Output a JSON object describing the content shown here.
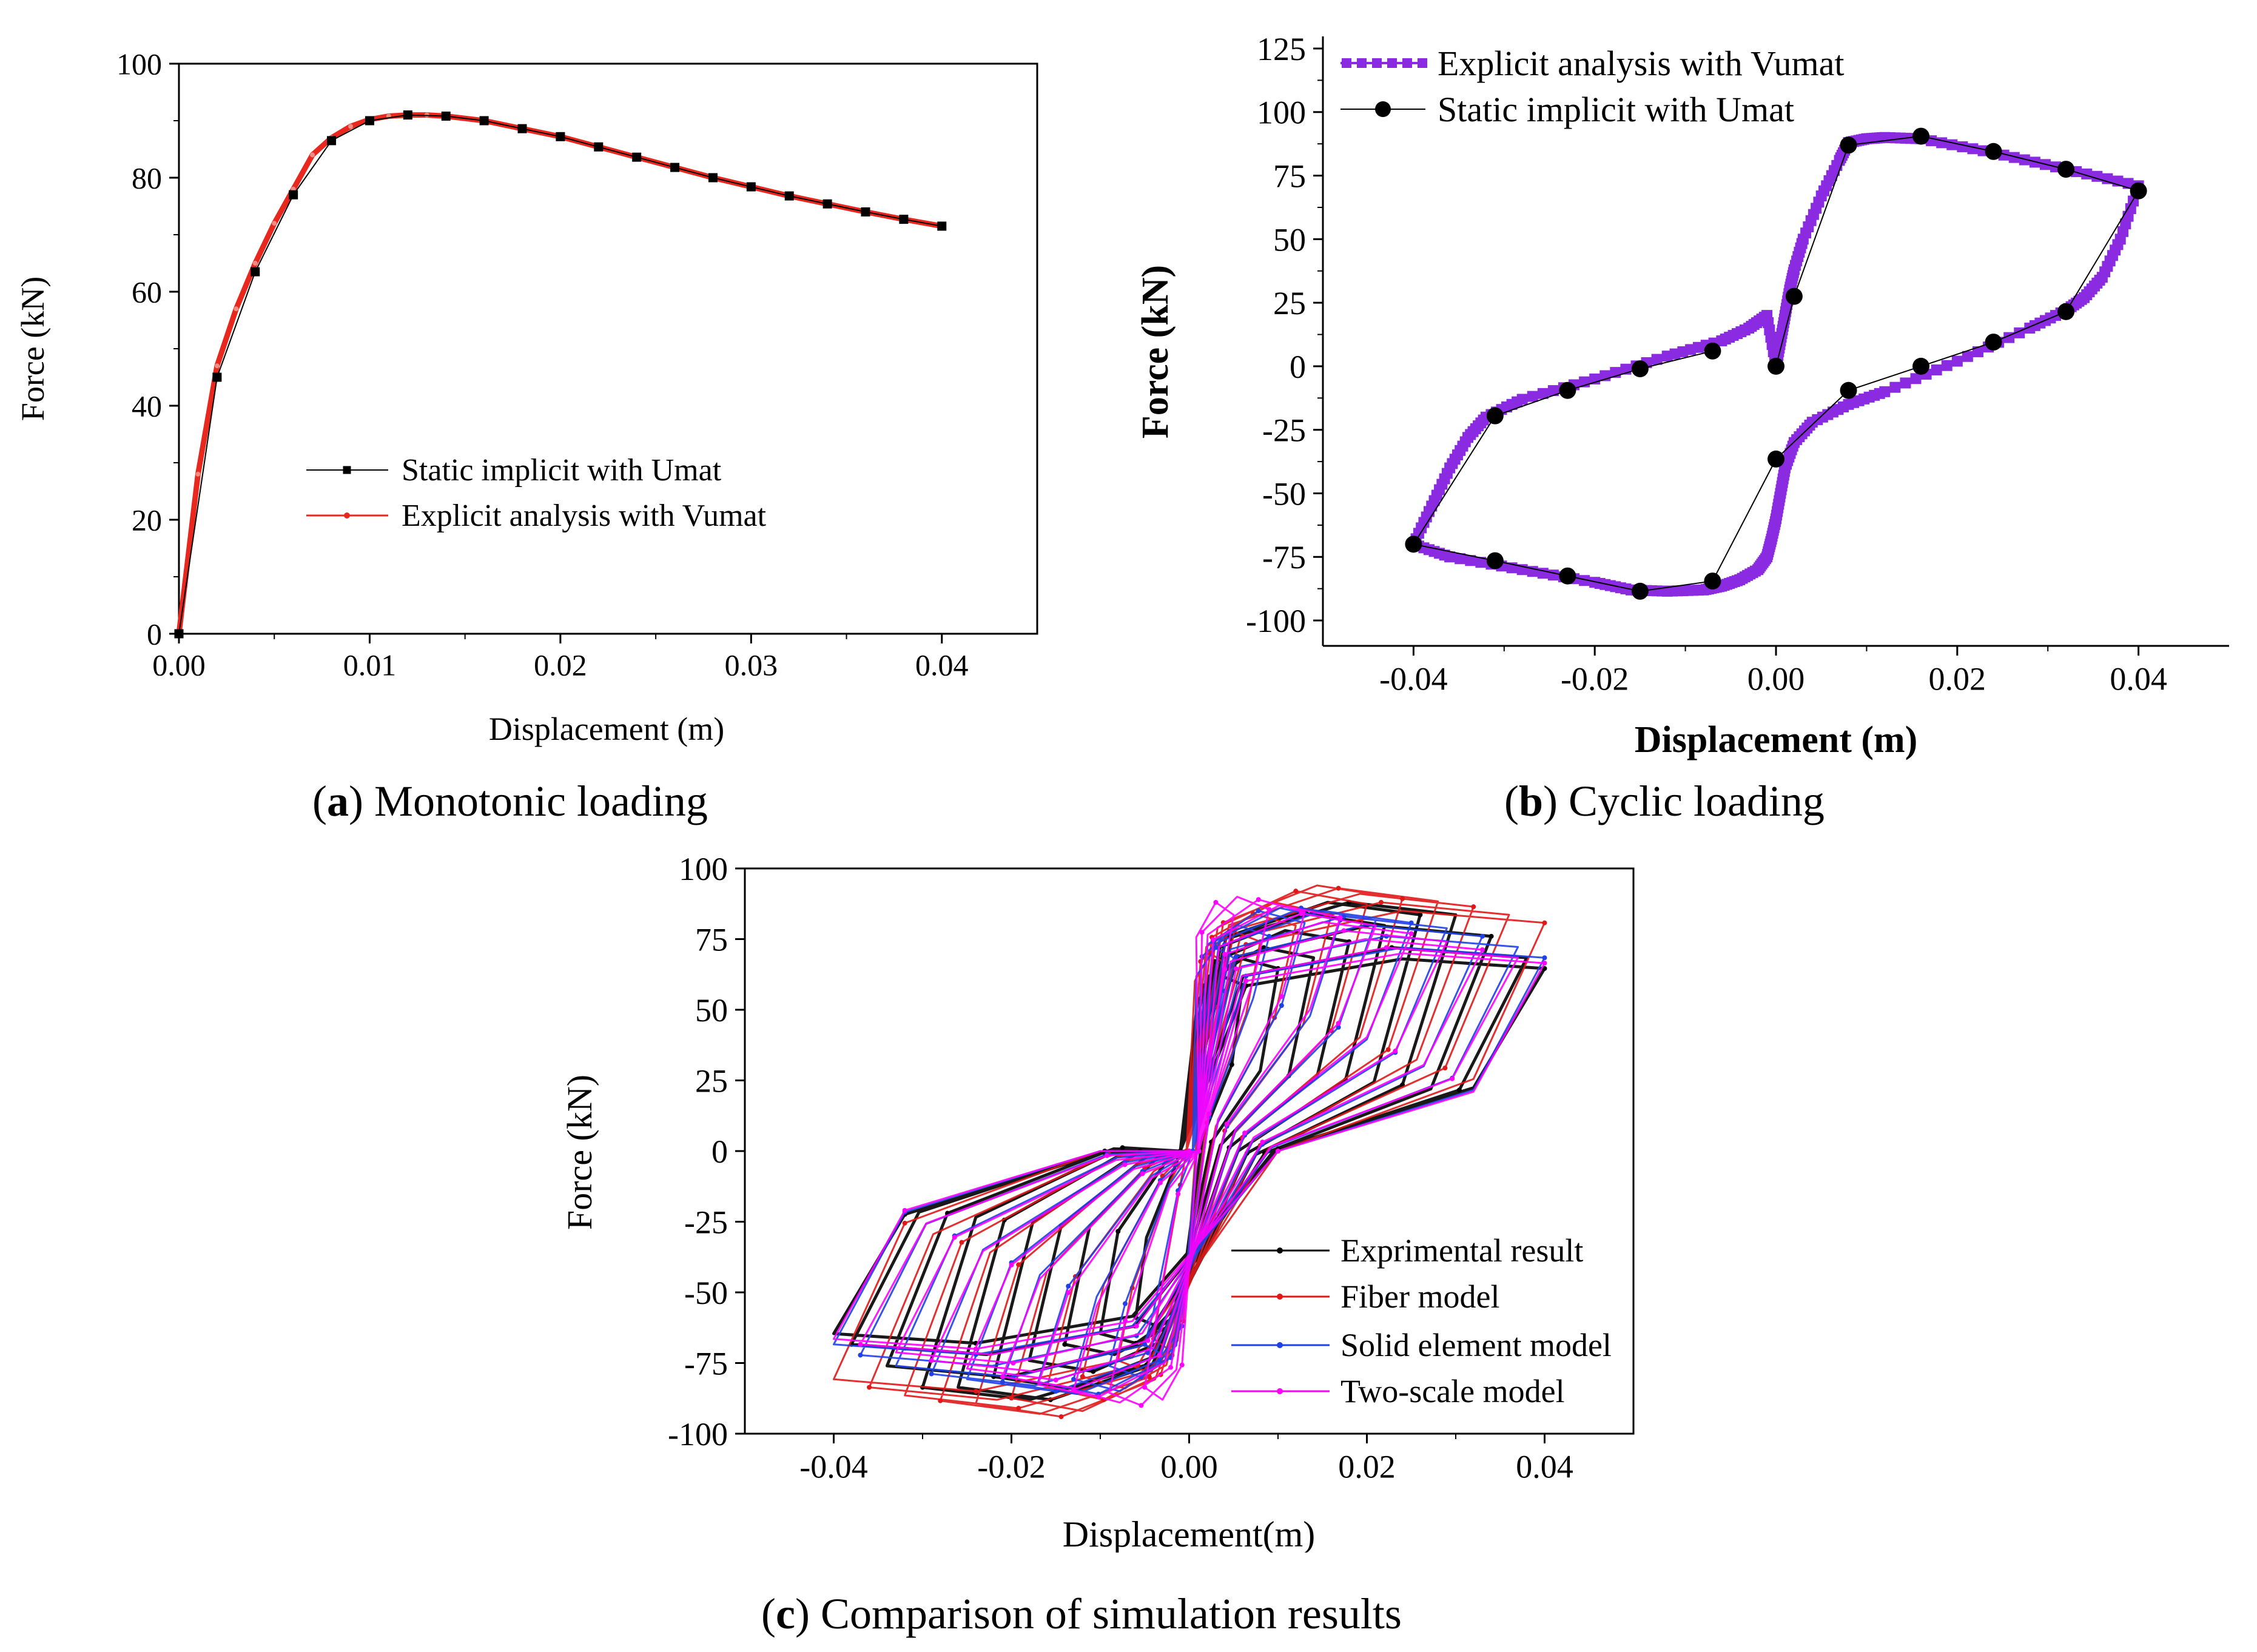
{
  "chart_data": [
    {
      "id": "a",
      "type": "line",
      "caption_letter": "a",
      "caption_text": "Monotonic loading",
      "xlabel": "Displacement (m)",
      "ylabel": "Force (kN)",
      "xlim": [
        0,
        0.045
      ],
      "ylim": [
        0,
        100
      ],
      "xticks": [
        "0.00",
        "0.01",
        "0.02",
        "0.03",
        "0.04"
      ],
      "xtick_values": [
        0,
        0.01,
        0.02,
        0.03,
        0.04
      ],
      "yticks": [
        "0",
        "20",
        "40",
        "60",
        "80",
        "100"
      ],
      "ytick_values": [
        0,
        20,
        40,
        60,
        80,
        100
      ],
      "legend_position": "center",
      "series": [
        {
          "name": "Static implicit with Umat",
          "color": "#000000",
          "marker": "square",
          "x": [
            0,
            0.002,
            0.004,
            0.006,
            0.008,
            0.01,
            0.012,
            0.014,
            0.016,
            0.018,
            0.02,
            0.022,
            0.024,
            0.026,
            0.028,
            0.03,
            0.032,
            0.034,
            0.036,
            0.038,
            0.04
          ],
          "values": [
            0,
            45,
            63.5,
            77,
            86.5,
            90,
            91,
            90.8,
            90,
            88.6,
            87.2,
            85.4,
            83.6,
            81.8,
            80,
            78.4,
            76.8,
            75.4,
            74,
            72.7,
            71.5
          ]
        },
        {
          "name": "Explicit analysis with Vumat",
          "color": "#e8281e",
          "marker": "dot",
          "x": [
            0,
            0.001,
            0.002,
            0.003,
            0.004,
            0.005,
            0.006,
            0.007,
            0.008,
            0.009,
            0.01,
            0.011,
            0.012,
            0.013,
            0.014,
            0.016,
            0.018,
            0.02,
            0.022,
            0.024,
            0.026,
            0.028,
            0.03,
            0.032,
            0.034,
            0.036,
            0.038,
            0.04
          ],
          "values": [
            0,
            28,
            47,
            57,
            65,
            72,
            78,
            84,
            87,
            89,
            90.2,
            90.8,
            91,
            91,
            90.8,
            90,
            88.6,
            87.2,
            85.4,
            83.6,
            81.8,
            80,
            78.4,
            76.8,
            75.4,
            74,
            72.7,
            71.5
          ]
        }
      ]
    },
    {
      "id": "b",
      "type": "line",
      "caption_letter": "b",
      "caption_text": "Cyclic loading",
      "xlabel": "Displacement (m)",
      "ylabel": "Force (kN)",
      "xlim": [
        -0.05,
        0.05
      ],
      "ylim": [
        -110,
        125
      ],
      "xticks": [
        "-0.04",
        "-0.02",
        "0.00",
        "0.02",
        "0.04"
      ],
      "xtick_values": [
        -0.04,
        -0.02,
        0,
        0.02,
        0.04
      ],
      "yticks": [
        "125",
        "100",
        "75",
        "50",
        "25",
        "0",
        "-25",
        "-50",
        "-75",
        "-100"
      ],
      "ytick_values": [
        125,
        100,
        75,
        50,
        25,
        0,
        -25,
        -50,
        -75,
        -100
      ],
      "legend_position": "top-left",
      "series": [
        {
          "name": "Explicit analysis with Vumat",
          "color": "#8a2be2",
          "marker": "square",
          "x": [
            0,
            0.0005,
            0.001,
            0.0015,
            0.002,
            0.003,
            0.005,
            0.007,
            0.008,
            0.01,
            0.012,
            0.016,
            0.024,
            0.032,
            0.04,
            0.038,
            0.036,
            0.034,
            0.032,
            0.028,
            0.02,
            0.012,
            0.008,
            0.004,
            0.002,
            0.001,
            0.0005,
            0,
            -0.0005,
            -0.001,
            -0.002,
            -0.004,
            -0.006,
            -0.008,
            -0.012,
            -0.016,
            -0.02,
            -0.028,
            -0.036,
            -0.04,
            -0.038,
            -0.036,
            -0.034,
            -0.032,
            -0.028,
            -0.02,
            -0.012,
            -0.006,
            -0.003,
            -0.001,
            0
          ],
          "values": [
            0,
            10,
            20,
            30,
            38,
            50,
            67,
            81,
            88,
            89.5,
            90,
            89.5,
            84,
            77.5,
            71,
            50,
            35,
            27,
            22,
            15,
            2,
            -10,
            -15,
            -22,
            -30,
            -40,
            -50,
            -60,
            -68,
            -75,
            -80,
            -84,
            -86.5,
            -88,
            -88.5,
            -88,
            -85,
            -80,
            -75,
            -70,
            -55,
            -40,
            -28,
            -20,
            -13,
            -5,
            4,
            10,
            15,
            20,
            0
          ]
        },
        {
          "name": "Static implicit with Umat",
          "color": "#000000",
          "marker": "circle",
          "x": [
            0,
            0.002,
            0.008,
            0.016,
            0.024,
            0.032,
            0.04,
            0.032,
            0.024,
            0.016,
            0.008,
            0,
            -0.007,
            -0.015,
            -0.023,
            -0.031,
            -0.04,
            -0.031,
            -0.023,
            -0.015,
            -0.007
          ],
          "values": [
            0,
            27.5,
            87,
            90.5,
            84.5,
            77.5,
            69,
            21.5,
            9.5,
            0,
            -9.5,
            -36.5,
            -84.5,
            -88.5,
            -82.5,
            -76.5,
            -70,
            -19.5,
            -9.5,
            -1,
            6
          ]
        }
      ]
    },
    {
      "id": "c",
      "type": "line",
      "caption_letter": "c",
      "caption_text": "Comparison of simulation results",
      "xlabel": "Displacement(m)",
      "ylabel": "Force (kN)",
      "xlim": [
        -0.05,
        0.05
      ],
      "ylim": [
        -100,
        100
      ],
      "xticks": [
        "-0.04",
        "-0.02",
        "0.00",
        "0.02",
        "0.04"
      ],
      "xtick_values": [
        -0.04,
        -0.02,
        0,
        0.02,
        0.04
      ],
      "yticks": [
        "100",
        "75",
        "50",
        "25",
        "0",
        "-25",
        "-50",
        "-75",
        "-100"
      ],
      "ytick_values": [
        100,
        75,
        50,
        25,
        0,
        -25,
        -50,
        -75,
        -100
      ],
      "legend_position": "bottom-right",
      "series": [
        {
          "name": "Exprimental result",
          "color": "#000000",
          "amplitudes": [
            0.006,
            0.01,
            0.014,
            0.018,
            0.022,
            0.026,
            0.03,
            0.034,
            0.038,
            0.04
          ],
          "peak_force": [
            62,
            68,
            72,
            78,
            84,
            88,
            88,
            80,
            72,
            68
          ],
          "pinch_force": [
            12,
            8,
            5,
            3,
            0,
            -2,
            -3,
            -2,
            0,
            2
          ]
        },
        {
          "name": "Fiber model",
          "color": "#e01818",
          "amplitudes": [
            0.004,
            0.008,
            0.012,
            0.016,
            0.02,
            0.024,
            0.028,
            0.032,
            0.036,
            0.04
          ],
          "peak_force": [
            70,
            78,
            84,
            88,
            92,
            94,
            93,
            91,
            88,
            85
          ],
          "pinch_force": [
            30,
            25,
            22,
            18,
            15,
            12,
            8,
            5,
            3,
            0
          ]
        },
        {
          "name": "Solid element model",
          "color": "#2040e8",
          "amplitudes": [
            0.005,
            0.009,
            0.013,
            0.017,
            0.021,
            0.025,
            0.029,
            0.033,
            0.037,
            0.04
          ],
          "peak_force": [
            72,
            80,
            85,
            86,
            86,
            85,
            83,
            80,
            76,
            72
          ],
          "pinch_force": [
            35,
            30,
            26,
            22,
            18,
            14,
            10,
            6,
            3,
            0
          ]
        },
        {
          "name": "Two-scale model",
          "color": "#ff00ff",
          "amplitudes": [
            0.005,
            0.009,
            0.013,
            0.017,
            0.021,
            0.025,
            0.029,
            0.033,
            0.037,
            0.04
          ],
          "peak_force": [
            88,
            90,
            89,
            87,
            84,
            81,
            78,
            75,
            72,
            70
          ],
          "pinch_force": [
            38,
            33,
            28,
            24,
            20,
            16,
            12,
            8,
            4,
            0
          ]
        }
      ]
    }
  ]
}
